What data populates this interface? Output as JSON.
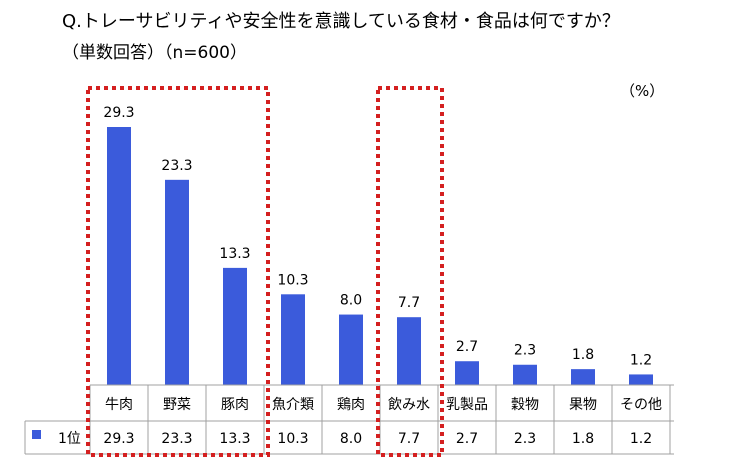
{
  "title": "Q.トレーサビリティや安全性を意識している食材・食品は何ですか？",
  "subtitle": "（単数回答）（n=600）",
  "unit": "（%）",
  "chart_data": {
    "type": "bar",
    "categories": [
      "牛肉",
      "野菜",
      "豚肉",
      "魚介類",
      "鶏肉",
      "飲み水",
      "乳製品",
      "穀物",
      "果物",
      "その他"
    ],
    "series": [
      {
        "name": "1位",
        "values": [
          29.3,
          23.3,
          13.3,
          10.3,
          8.0,
          7.7,
          2.7,
          2.3,
          1.8,
          1.2
        ]
      }
    ],
    "value_labels": [
      "29.3",
      "23.3",
      "13.3",
      "10.3",
      "8.0",
      "7.7",
      "2.7",
      "2.3",
      "1.8",
      "1.2"
    ],
    "ylim": [
      0,
      29.3
    ],
    "grid": false,
    "legend": "data-table",
    "bar_color": "#3b5bdb",
    "highlight_color": "#d42020",
    "highlight_groups": [
      [
        "牛肉",
        "野菜",
        "豚肉"
      ],
      [
        "飲み水"
      ]
    ]
  }
}
